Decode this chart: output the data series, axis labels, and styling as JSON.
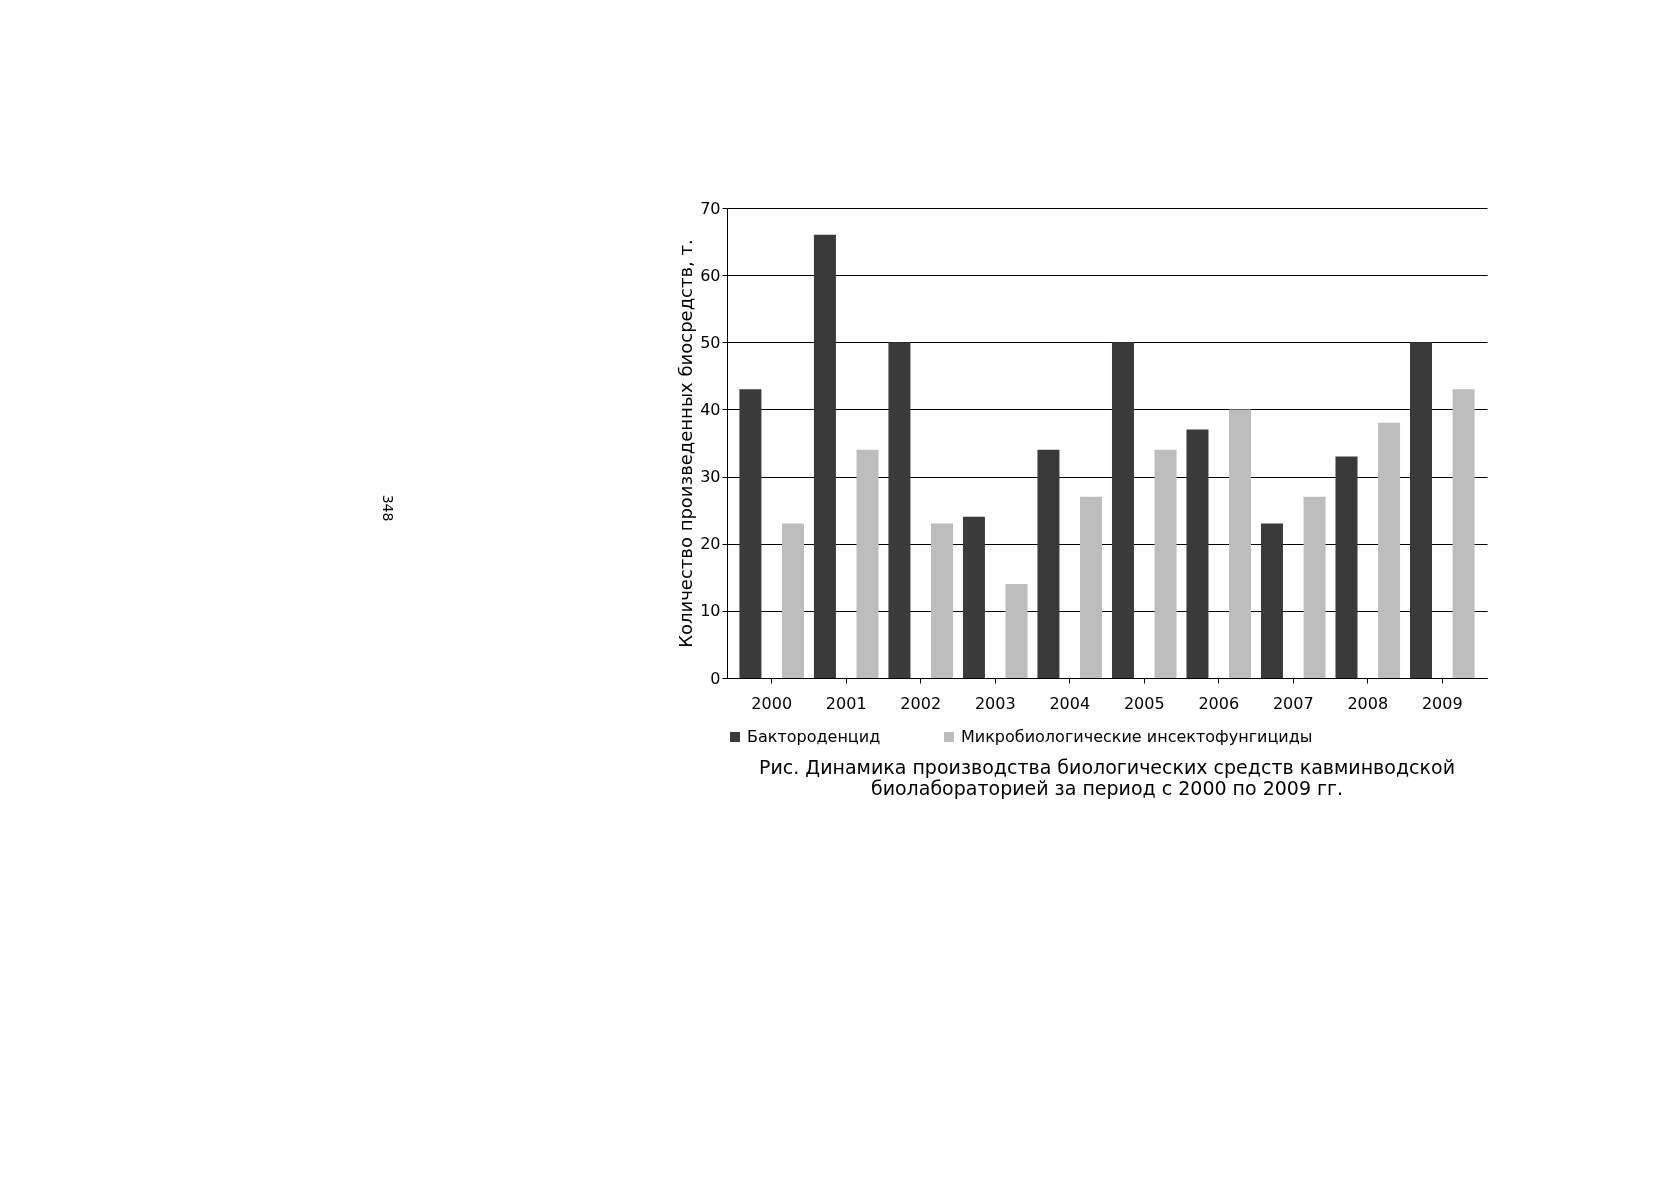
{
  "chart_data": {
    "type": "bar",
    "title": [
      "Рис. Динамика производства биологических средств кавминводской",
      "биолабораторией за период с 2000 по 2009 гг."
    ],
    "ylabel": "Количество произведенных биосредств, т.",
    "categories": [
      "2000",
      "2001",
      "2002",
      "2003",
      "2004",
      "2005",
      "2006",
      "2007",
      "2008",
      "2009"
    ],
    "series": [
      {
        "name": "Бактороденцид",
        "color": "#3a3a3a",
        "values": [
          43,
          66,
          50,
          24,
          34,
          50,
          37,
          23,
          33,
          50
        ]
      },
      {
        "name": "Микробиологические инсектофунгициды",
        "color": "#bdbdbd",
        "values": [
          23,
          34,
          23,
          14,
          27,
          34,
          40,
          27,
          38,
          43
        ]
      }
    ],
    "ylim": [
      0,
      70
    ],
    "yticks": [
      0,
      10,
      20,
      30,
      40,
      50,
      60,
      70
    ],
    "grid": "y",
    "legend": "bottom",
    "annotations": [
      "348"
    ]
  }
}
